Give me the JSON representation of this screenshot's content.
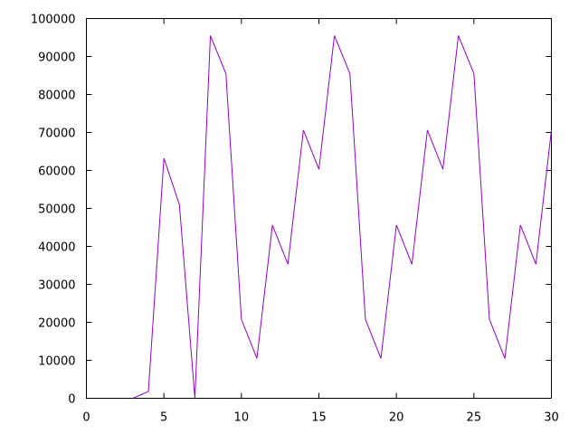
{
  "chart_data": {
    "type": "line",
    "title": "",
    "xlabel": "",
    "ylabel": "",
    "xlim": [
      0,
      30
    ],
    "ylim": [
      0,
      100000
    ],
    "xticks": [
      0,
      5,
      10,
      15,
      20,
      25,
      30
    ],
    "yticks": [
      0,
      10000,
      20000,
      30000,
      40000,
      50000,
      60000,
      70000,
      80000,
      90000,
      100000
    ],
    "grid": false,
    "legend": "none",
    "series": [
      {
        "color": "#9400d3",
        "points": [
          [
            3,
            0
          ],
          [
            4,
            1800
          ],
          [
            5,
            63200
          ],
          [
            6,
            51000
          ],
          [
            7,
            0
          ],
          [
            8,
            95500
          ],
          [
            9,
            85500
          ],
          [
            10,
            20800
          ],
          [
            11,
            10500
          ],
          [
            12,
            45600
          ],
          [
            13,
            35300
          ],
          [
            14,
            70600
          ],
          [
            15,
            60300
          ],
          [
            16,
            95500
          ],
          [
            17,
            85500
          ],
          [
            18,
            20800
          ],
          [
            19,
            10500
          ],
          [
            20,
            45600
          ],
          [
            21,
            35300
          ],
          [
            22,
            70600
          ],
          [
            23,
            60300
          ],
          [
            24,
            95500
          ],
          [
            25,
            85500
          ],
          [
            26,
            20800
          ],
          [
            27,
            10500
          ],
          [
            28,
            45600
          ],
          [
            29,
            35300
          ],
          [
            30,
            70600
          ]
        ]
      }
    ]
  }
}
